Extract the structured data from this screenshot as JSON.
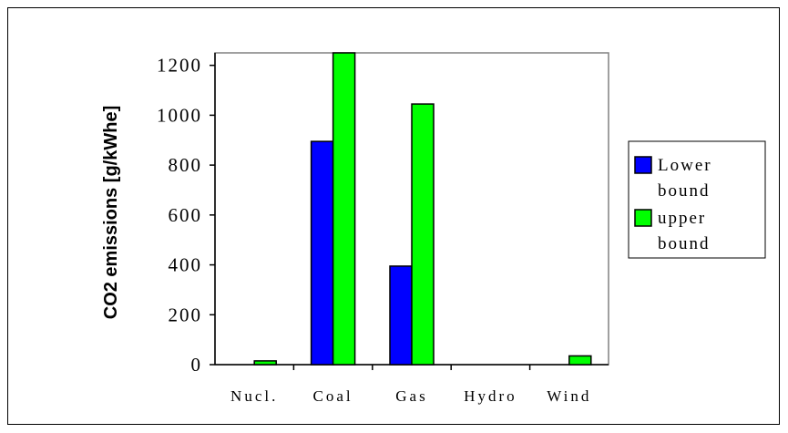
{
  "chart_data": {
    "type": "bar",
    "title": "",
    "xlabel": "",
    "ylabel": "CO2 emissions [g/kWhe]",
    "categories": [
      "Nucl.",
      "Coal",
      "Gas",
      "Hydro",
      "Wind"
    ],
    "series": [
      {
        "name": "Lower bound",
        "color": "#0000ff",
        "values": [
          0,
          895,
          395,
          0,
          0
        ]
      },
      {
        "name": "upper bound",
        "color": "#00ff00",
        "values": [
          15,
          1250,
          1045,
          0,
          35
        ]
      }
    ],
    "ylim": [
      0,
      1250
    ],
    "yticks": [
      0,
      200,
      400,
      600,
      800,
      1000,
      1200
    ],
    "grid": false,
    "legend": {
      "placement": "right",
      "lines": [
        [
          "Lower",
          "bound"
        ],
        [
          "upper",
          "bound"
        ]
      ]
    }
  }
}
